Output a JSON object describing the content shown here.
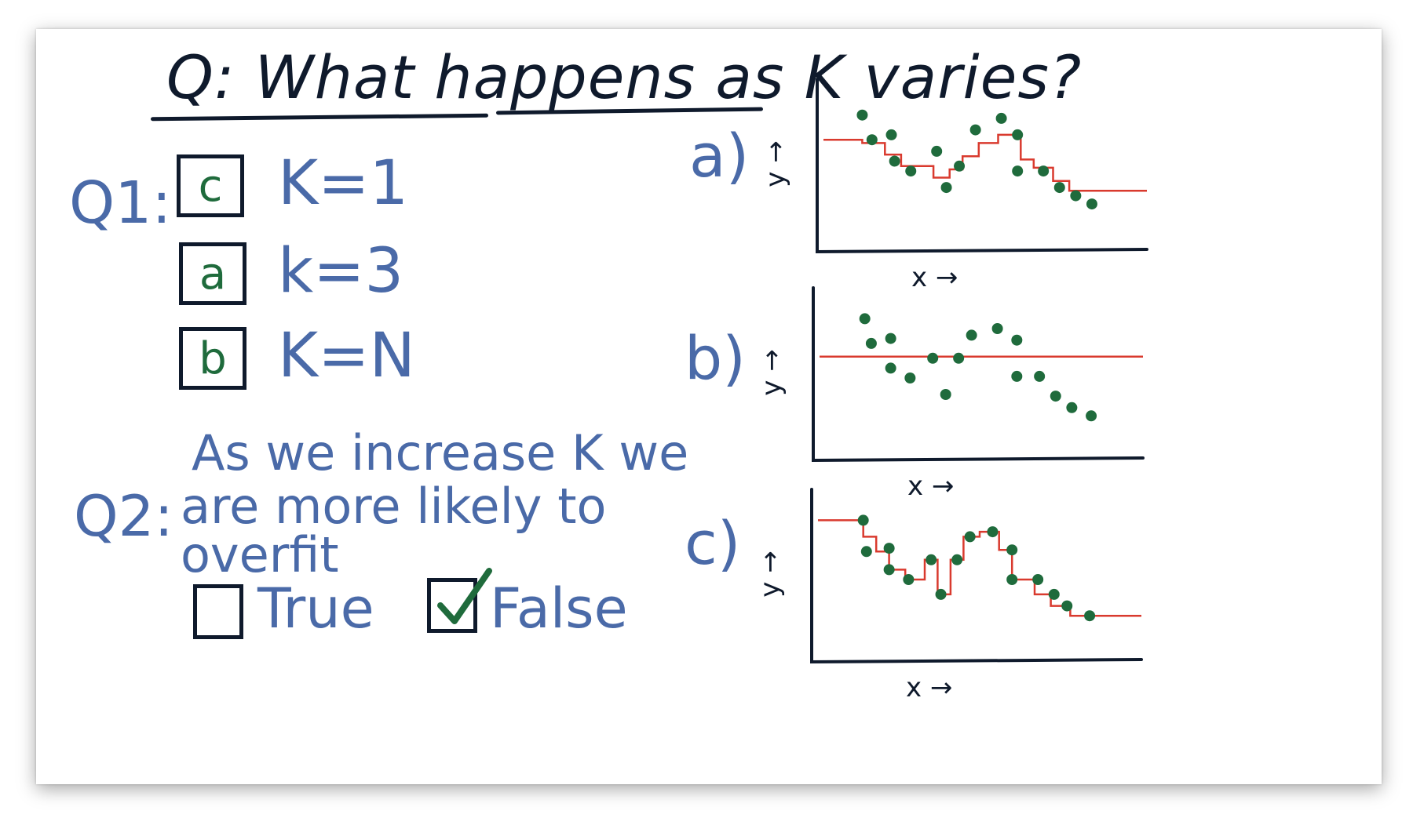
{
  "title": "Q: What happens as K varies?",
  "q1": {
    "label": "Q1:",
    "rows": [
      {
        "answer": "c",
        "k": "K=1"
      },
      {
        "answer": "a",
        "k": "k=3"
      },
      {
        "answer": "b",
        "k": "K=N"
      }
    ]
  },
  "q2": {
    "label": "Q2:",
    "lines": [
      "As we increase K we",
      "are more likely to",
      "overfit"
    ],
    "options": [
      {
        "label": "True",
        "checked": false
      },
      {
        "label": "False",
        "checked": true
      }
    ]
  },
  "axes": {
    "x": "x →",
    "y": "y →"
  },
  "colors": {
    "ink": "#0f1a2c",
    "blue": "#4a6aa8",
    "dot": "#1f6b3c",
    "fit": "#d93a2e"
  },
  "chart_data": [
    {
      "type": "scatter",
      "panel_label": "a)",
      "xlabel": "x →",
      "ylabel": "y →",
      "points": [
        [
          0.12,
          0.83
        ],
        [
          0.15,
          0.68
        ],
        [
          0.21,
          0.71
        ],
        [
          0.22,
          0.55
        ],
        [
          0.27,
          0.49
        ],
        [
          0.35,
          0.61
        ],
        [
          0.38,
          0.39
        ],
        [
          0.42,
          0.52
        ],
        [
          0.47,
          0.74
        ],
        [
          0.55,
          0.81
        ],
        [
          0.6,
          0.71
        ],
        [
          0.6,
          0.49
        ],
        [
          0.68,
          0.49
        ],
        [
          0.73,
          0.39
        ],
        [
          0.78,
          0.34
        ],
        [
          0.83,
          0.29
        ]
      ],
      "fit": [
        [
          0.0,
          0.68
        ],
        [
          0.12,
          0.68
        ],
        [
          0.12,
          0.66
        ],
        [
          0.19,
          0.66
        ],
        [
          0.19,
          0.59
        ],
        [
          0.24,
          0.59
        ],
        [
          0.24,
          0.52
        ],
        [
          0.34,
          0.52
        ],
        [
          0.34,
          0.45
        ],
        [
          0.39,
          0.45
        ],
        [
          0.39,
          0.5
        ],
        [
          0.43,
          0.5
        ],
        [
          0.43,
          0.58
        ],
        [
          0.48,
          0.58
        ],
        [
          0.48,
          0.66
        ],
        [
          0.54,
          0.66
        ],
        [
          0.54,
          0.71
        ],
        [
          0.61,
          0.71
        ],
        [
          0.61,
          0.56
        ],
        [
          0.65,
          0.56
        ],
        [
          0.65,
          0.51
        ],
        [
          0.71,
          0.51
        ],
        [
          0.71,
          0.43
        ],
        [
          0.76,
          0.43
        ],
        [
          0.76,
          0.37
        ],
        [
          1.0,
          0.37
        ]
      ]
    },
    {
      "type": "scatter",
      "panel_label": "b)",
      "xlabel": "x →",
      "ylabel": "y →",
      "points": [
        [
          0.14,
          0.86
        ],
        [
          0.16,
          0.71
        ],
        [
          0.22,
          0.74
        ],
        [
          0.22,
          0.56
        ],
        [
          0.28,
          0.5
        ],
        [
          0.35,
          0.62
        ],
        [
          0.39,
          0.4
        ],
        [
          0.43,
          0.62
        ],
        [
          0.47,
          0.76
        ],
        [
          0.55,
          0.8
        ],
        [
          0.61,
          0.73
        ],
        [
          0.61,
          0.51
        ],
        [
          0.68,
          0.51
        ],
        [
          0.73,
          0.39
        ],
        [
          0.78,
          0.32
        ],
        [
          0.84,
          0.27
        ]
      ],
      "fit": [
        [
          0.0,
          0.63
        ],
        [
          1.0,
          0.63
        ]
      ]
    },
    {
      "type": "scatter",
      "panel_label": "c)",
      "xlabel": "x →",
      "ylabel": "y →",
      "points": [
        [
          0.14,
          0.86
        ],
        [
          0.15,
          0.67
        ],
        [
          0.22,
          0.69
        ],
        [
          0.22,
          0.56
        ],
        [
          0.28,
          0.5
        ],
        [
          0.35,
          0.62
        ],
        [
          0.38,
          0.41
        ],
        [
          0.43,
          0.62
        ],
        [
          0.47,
          0.76
        ],
        [
          0.54,
          0.79
        ],
        [
          0.6,
          0.68
        ],
        [
          0.6,
          0.5
        ],
        [
          0.68,
          0.5
        ],
        [
          0.73,
          0.41
        ],
        [
          0.77,
          0.34
        ],
        [
          0.84,
          0.28
        ]
      ],
      "fit": [
        [
          0.0,
          0.86
        ],
        [
          0.14,
          0.86
        ],
        [
          0.14,
          0.76
        ],
        [
          0.18,
          0.76
        ],
        [
          0.18,
          0.67
        ],
        [
          0.22,
          0.67
        ],
        [
          0.22,
          0.56
        ],
        [
          0.27,
          0.56
        ],
        [
          0.27,
          0.5
        ],
        [
          0.33,
          0.5
        ],
        [
          0.33,
          0.62
        ],
        [
          0.37,
          0.62
        ],
        [
          0.37,
          0.41
        ],
        [
          0.41,
          0.41
        ],
        [
          0.41,
          0.62
        ],
        [
          0.45,
          0.62
        ],
        [
          0.45,
          0.76
        ],
        [
          0.5,
          0.76
        ],
        [
          0.5,
          0.79
        ],
        [
          0.56,
          0.79
        ],
        [
          0.56,
          0.68
        ],
        [
          0.6,
          0.68
        ],
        [
          0.6,
          0.5
        ],
        [
          0.67,
          0.5
        ],
        [
          0.67,
          0.41
        ],
        [
          0.72,
          0.41
        ],
        [
          0.72,
          0.34
        ],
        [
          0.78,
          0.34
        ],
        [
          0.78,
          0.28
        ],
        [
          1.0,
          0.28
        ]
      ]
    }
  ]
}
